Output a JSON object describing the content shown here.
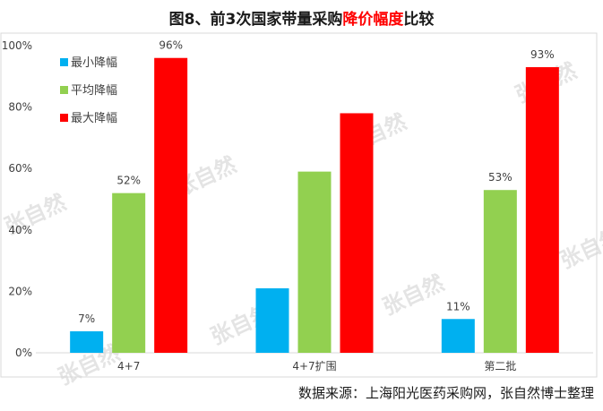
{
  "title": {
    "prefix": "图8、前3次国家带量采购",
    "highlight": "降价幅度",
    "suffix": "比较",
    "highlight_color": "#ff0000"
  },
  "source": "数据来源：上海阳光医药采购网，张自然博士整理",
  "watermark": "张自然",
  "chart_data": {
    "type": "bar",
    "categories": [
      "4+7",
      "4+7扩围",
      "第二批"
    ],
    "series": [
      {
        "name": "最小降幅",
        "color": "#00b0f0",
        "values": [
          7,
          21,
          11
        ],
        "labels": [
          "7%",
          "",
          "11%"
        ]
      },
      {
        "name": "平均降幅",
        "color": "#92d050",
        "values": [
          52,
          59,
          53
        ],
        "labels": [
          "52%",
          "",
          "53%"
        ]
      },
      {
        "name": "最大降幅",
        "color": "#ff0000",
        "values": [
          96,
          78,
          93
        ],
        "labels": [
          "96%",
          "",
          "93%"
        ]
      }
    ],
    "ylim": [
      0,
      100
    ],
    "yticks": [
      "0%",
      "20%",
      "40%",
      "60%",
      "80%",
      "100%"
    ],
    "grid": false,
    "legend": "top-left"
  }
}
